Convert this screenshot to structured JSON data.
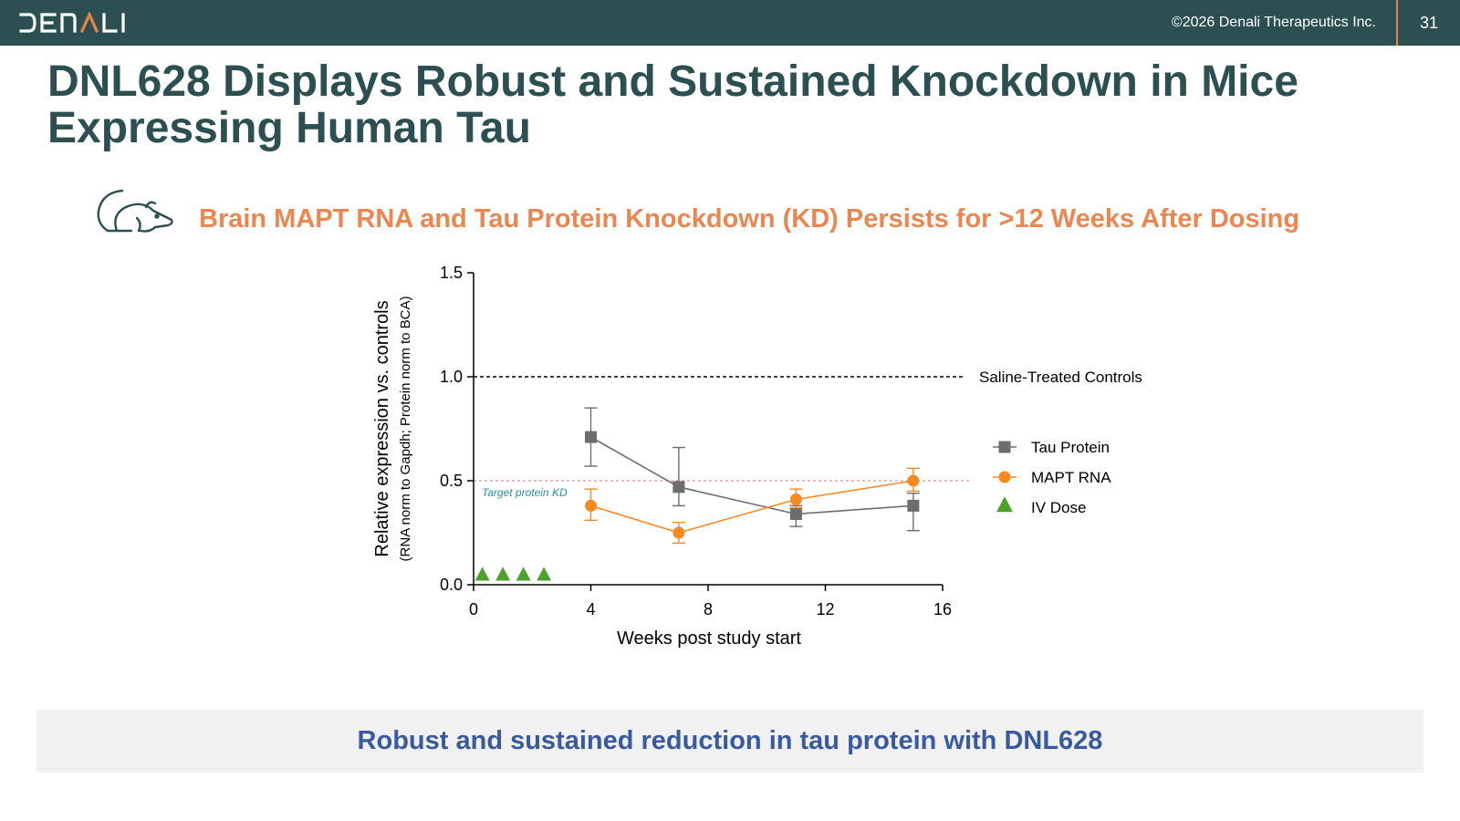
{
  "header": {
    "logo_text": "DENALI",
    "copyright": "©2026 Denali Therapeutics Inc.",
    "page_number": "31",
    "bar_color": "#2c5052",
    "accent_color": "#e8834e"
  },
  "slide": {
    "title": "DNL628 Displays Robust and Sustained Knockdown in Mice Expressing Human Tau",
    "subtitle": "Brain MAPT RNA and Tau Protein Knockdown (KD) Persists for >12 Weeks After Dosing",
    "subtitle_icon": "mouse-icon",
    "footer": "Robust and sustained reduction in tau protein with DNL628"
  },
  "chart_data": {
    "type": "line",
    "xlabel": "Weeks post study start",
    "ylabel": "Relative expression vs. controls",
    "ylabel_sub": "(RNA norm to Gapdh; Protein norm to BCA)",
    "xlim": [
      0,
      16
    ],
    "ylim": [
      0,
      1.5
    ],
    "xticks": [
      0,
      4,
      8,
      12,
      16
    ],
    "yticks": [
      0.0,
      0.5,
      1.0,
      1.5
    ],
    "ytick_labels": [
      "0.0",
      "0.5",
      "1.0",
      "1.5"
    ],
    "grid": false,
    "legend": "right",
    "series": [
      {
        "name": "Tau Protein",
        "color": "#6d6d6d",
        "marker": "square",
        "x": [
          4,
          7,
          11,
          15
        ],
        "y": [
          0.71,
          0.47,
          0.34,
          0.38
        ],
        "err_low": [
          0.57,
          0.38,
          0.28,
          0.26
        ],
        "err_high": [
          0.85,
          0.66,
          0.38,
          0.44
        ]
      },
      {
        "name": "MAPT RNA",
        "color": "#f58a1f",
        "marker": "circle",
        "x": [
          4,
          7,
          11,
          15
        ],
        "y": [
          0.38,
          0.25,
          0.41,
          0.5
        ],
        "err_low": [
          0.31,
          0.2,
          0.37,
          0.45
        ],
        "err_high": [
          0.46,
          0.3,
          0.46,
          0.56
        ]
      },
      {
        "name": "IV Dose",
        "color": "#4ea22c",
        "marker": "triangle",
        "x": [
          0.3,
          1.0,
          1.7,
          2.4
        ],
        "y": [
          0.03,
          0.03,
          0.03,
          0.03
        ]
      }
    ],
    "reference_lines": [
      {
        "y": 1.0,
        "label": "Saline-Treated Controls",
        "color": "#000000",
        "style": "dashed"
      },
      {
        "y": 0.5,
        "label": "Target protein KD",
        "color": "#e07a6a",
        "label_color": "#2b8fa8",
        "style": "dashed"
      }
    ]
  }
}
